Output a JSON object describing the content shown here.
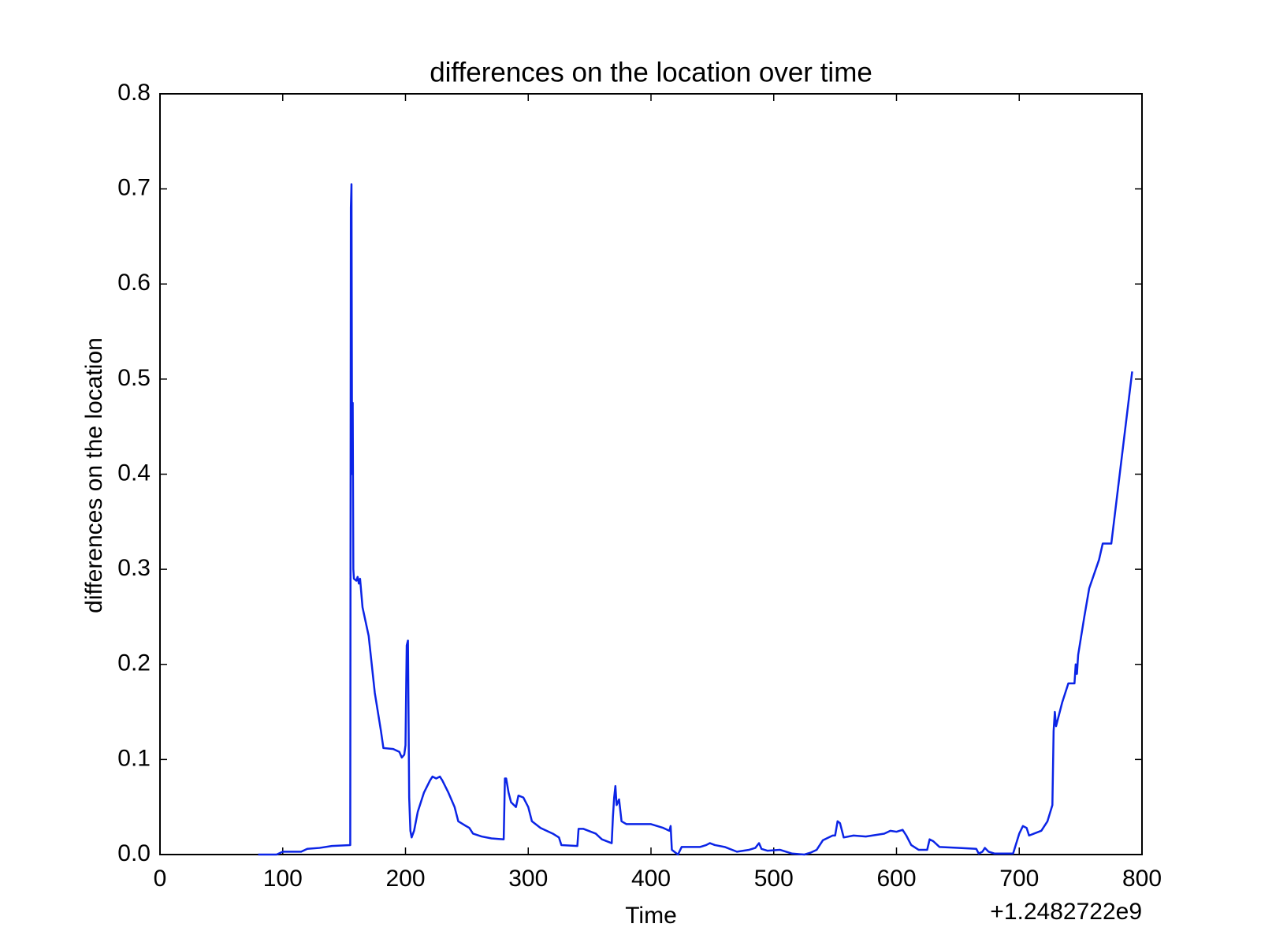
{
  "chart_data": {
    "type": "line",
    "title": "differences on the location over time",
    "x_label": "Time",
    "y_label": "differences on the location",
    "x_offset_label": "+1.2482722e9",
    "xlim": [
      0,
      800
    ],
    "xticks": [
      0,
      100,
      200,
      300,
      400,
      500,
      600,
      700,
      800
    ],
    "ylim": [
      0,
      0.8
    ],
    "yticks": [
      {
        "value": 0,
        "label": "0.0"
      },
      0.1,
      0.2,
      0.3,
      0.4,
      0.5,
      0.6,
      0.7,
      0.8
    ],
    "series": [
      {
        "color": "#0b24e6",
        "x": [
          80,
          95,
          100,
          110,
          115,
          120,
          130,
          140,
          155,
          155.5,
          156,
          156.5,
          157,
          157.5,
          158,
          160,
          161,
          162,
          163,
          165,
          170,
          175,
          180,
          182,
          190,
          195,
          197,
          199,
          200,
          201,
          202,
          203,
          204,
          205,
          207,
          210,
          215,
          220,
          222,
          225,
          228,
          230,
          235,
          240,
          243,
          248,
          252,
          255,
          262,
          270,
          280,
          281,
          282,
          284,
          286,
          290,
          292,
          296,
          300,
          303,
          310,
          320,
          325,
          327,
          340,
          341,
          345,
          355,
          360,
          368,
          369,
          370,
          371,
          372,
          374,
          376,
          380,
          400,
          410,
          415,
          416,
          417,
          420,
          422,
          425,
          440,
          445,
          448,
          452,
          460,
          470,
          480,
          485,
          488,
          490,
          495,
          505,
          515,
          525,
          530,
          535,
          540,
          548,
          550,
          552,
          554,
          557,
          565,
          575,
          590,
          595,
          600,
          605,
          608,
          612,
          618,
          625,
          627,
          630,
          635,
          650,
          665,
          667,
          670,
          672,
          675,
          680,
          695,
          700,
          703,
          706,
          708,
          712,
          718,
          723,
          727,
          728,
          729,
          730,
          735,
          740,
          745,
          746,
          747,
          748,
          753,
          757,
          765,
          768,
          775,
          792
        ],
        "values": [
          0,
          0,
          0.003,
          0.003,
          0.003,
          0.006,
          0.007,
          0.009,
          0.01,
          0.68,
          0.705,
          0.4,
          0.475,
          0.3,
          0.29,
          0.288,
          0.292,
          0.285,
          0.29,
          0.26,
          0.23,
          0.17,
          0.13,
          0.112,
          0.111,
          0.108,
          0.102,
          0.105,
          0.115,
          0.22,
          0.225,
          0.06,
          0.025,
          0.018,
          0.025,
          0.045,
          0.065,
          0.078,
          0.082,
          0.08,
          0.082,
          0.078,
          0.065,
          0.05,
          0.035,
          0.031,
          0.028,
          0.022,
          0.019,
          0.017,
          0.016,
          0.08,
          0.08,
          0.065,
          0.055,
          0.05,
          0.062,
          0.06,
          0.05,
          0.035,
          0.028,
          0.022,
          0.018,
          0.01,
          0.009,
          0.027,
          0.027,
          0.022,
          0.016,
          0.012,
          0.04,
          0.06,
          0.072,
          0.052,
          0.058,
          0.035,
          0.032,
          0.032,
          0.028,
          0.025,
          0.03,
          0.005,
          0.002,
          0,
          0.008,
          0.008,
          0.01,
          0.012,
          0.01,
          0.008,
          0.003,
          0.005,
          0.007,
          0.012,
          0.006,
          0.004,
          0.005,
          0.001,
          0,
          0.002,
          0.005,
          0.015,
          0.02,
          0.02,
          0.035,
          0.033,
          0.018,
          0.02,
          0.019,
          0.022,
          0.025,
          0.024,
          0.026,
          0.02,
          0.01,
          0.005,
          0.005,
          0.016,
          0.014,
          0.008,
          0.007,
          0.006,
          0.001,
          0.003,
          0.007,
          0.003,
          0.001,
          0.001,
          0.022,
          0.03,
          0.028,
          0.02,
          0.022,
          0.025,
          0.035,
          0.052,
          0.13,
          0.15,
          0.135,
          0.16,
          0.18,
          0.18,
          0.2,
          0.19,
          0.21,
          0.25,
          0.28,
          0.31,
          0.327,
          0.327,
          0.508
        ]
      }
    ]
  }
}
